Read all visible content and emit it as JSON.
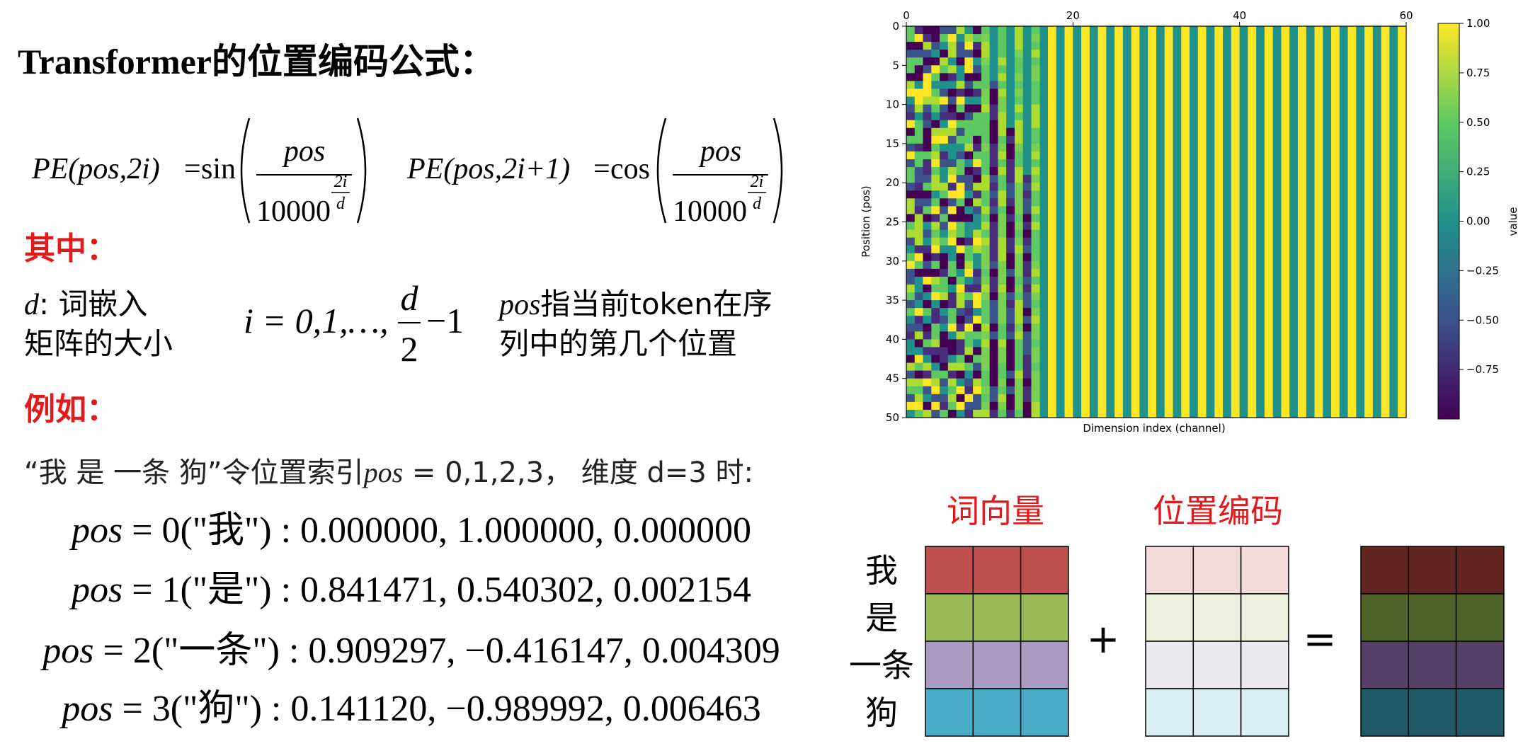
{
  "title": "Transformer的位置编码公式：",
  "formulas": [
    {
      "lhs": "PE(pos,2i)",
      "eq": "=",
      "fn": "sin",
      "numerator": "pos",
      "base": "10000",
      "exp_num": "2i",
      "exp_den": "d"
    },
    {
      "lhs": "PE(pos,2i+1)",
      "eq": "=",
      "fn": "cos",
      "numerator": "pos",
      "base": "10000",
      "exp_num": "2i",
      "exp_den": "d"
    }
  ],
  "where": {
    "heading": "其中：",
    "d_symbol": "d",
    "d_text": ":  词嵌入",
    "d_text2": "矩阵的大小",
    "i_text": "i = 0,1,…,",
    "i_num": "d",
    "i_den": "2",
    "i_tail": "−1",
    "pos_symbol": "pos",
    "pos_text": "指当前token在序",
    "pos_text2": "列中的第几个位置"
  },
  "example": {
    "heading": "例如：",
    "sentence_a": "“我 是 一条 狗”令位置索引",
    "sentence_pos": "pos",
    "sentence_b": " = 0,1,2,3， 维度 d=3 时:",
    "lines": [
      {
        "var": "pos",
        "rest": " = 0(\"我\") : 0.000000, 1.000000, 0.000000"
      },
      {
        "var": "pos",
        "rest": " = 1(\"是\") : 0.841471, 0.540302, 0.002154"
      },
      {
        "var": "pos",
        "rest": " = 2(\"一条\") : 0.909297, −0.416147, 0.004309"
      },
      {
        "var": "pos",
        "rest": " = 3(\"狗\") : 0.141120, −0.989992, 0.006463"
      }
    ]
  },
  "chart_data": {
    "type": "heatmap",
    "xlabel": "Dimension index (channel)",
    "ylabel": "Position (pos)",
    "xlim": [
      0,
      60
    ],
    "xticks": [
      0,
      20,
      40,
      60
    ],
    "ylim": [
      0,
      50
    ],
    "yticks": [
      0,
      5,
      10,
      15,
      20,
      25,
      30,
      35,
      40,
      45,
      50
    ],
    "y_inverted": true,
    "colorbar": {
      "label": "value",
      "lim": [
        -1,
        1
      ],
      "ticks": [
        {
          "value": 1,
          "label": "1.00"
        },
        {
          "value": 0.75,
          "label": "0.75"
        },
        {
          "value": 0.5,
          "label": "0.50"
        },
        {
          "value": 0.25,
          "label": "0.25"
        },
        {
          "value": 0,
          "label": "0.00"
        },
        {
          "value": -0.25,
          "label": "−0.25"
        },
        {
          "value": -0.5,
          "label": "−0.50"
        },
        {
          "value": -0.75,
          "label": "−0.75"
        }
      ]
    }
  },
  "diagram": {
    "word_vector": "词向量",
    "position_encoding": "位置编码",
    "tokens": [
      "我",
      "是",
      "一条",
      "狗"
    ],
    "plus": "+",
    "equals": "="
  }
}
